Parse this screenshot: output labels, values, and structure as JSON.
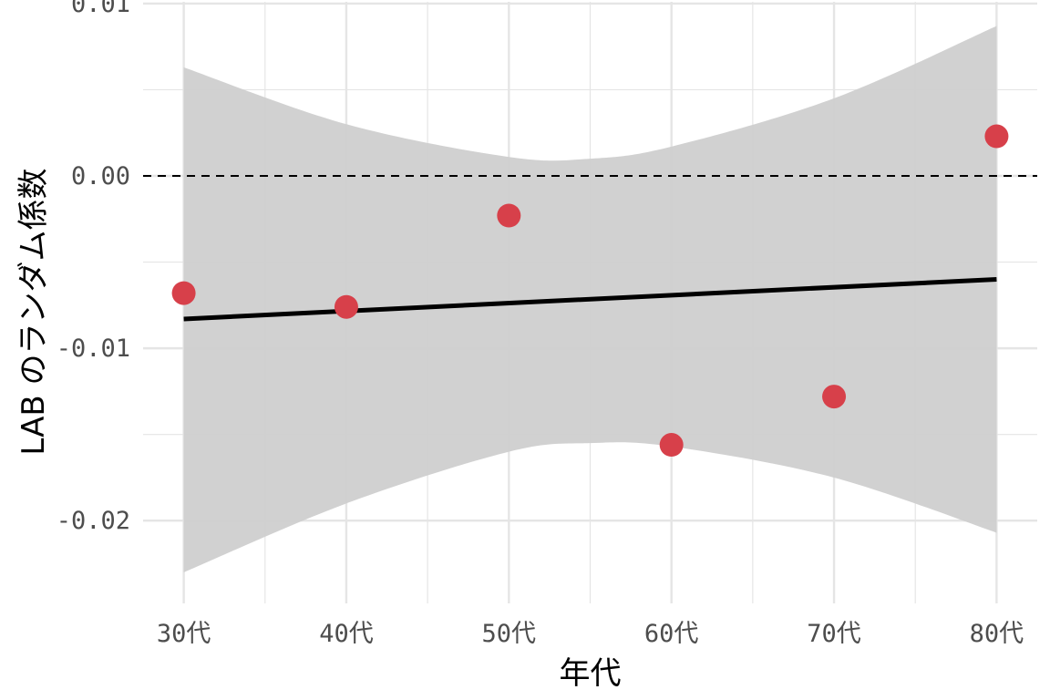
{
  "chart_data": {
    "type": "scatter",
    "xlabel": "年代",
    "ylabel": "LAB のランダム係数",
    "categories": [
      "30代",
      "40代",
      "50代",
      "60代",
      "70代",
      "80代"
    ],
    "x_numeric": [
      30,
      40,
      50,
      60,
      70,
      80
    ],
    "xlim": [
      27.5,
      82.5
    ],
    "ylim": [
      -0.0248,
      0.0101
    ],
    "y_ticks": [
      -0.02,
      -0.01,
      0.0,
      0.01
    ],
    "y_tick_labels": [
      "-0.02",
      "-0.01",
      "0.00",
      "0.01"
    ],
    "series": [
      {
        "values": [
          -0.0068,
          -0.0076,
          -0.0023,
          -0.0156,
          -0.0128,
          0.0023
        ]
      }
    ],
    "fit": {
      "type": "linear",
      "x": [
        30,
        80
      ],
      "y": [
        -0.0083,
        -0.006
      ]
    },
    "confidence_band": {
      "x": [
        30,
        40,
        50,
        55,
        60,
        70,
        80
      ],
      "upper": [
        0.0063,
        0.003,
        0.0011,
        0.001,
        0.0017,
        0.0045,
        0.0087
      ],
      "lower": [
        -0.023,
        -0.019,
        -0.016,
        -0.0155,
        -0.0157,
        -0.0175,
        -0.0207
      ]
    },
    "reference_line": {
      "y": 0.0,
      "style": "dashed"
    },
    "grid": true,
    "colors": {
      "point": "#d7404a",
      "fit_line": "#000000",
      "band": "#cfcfcf",
      "grid": "#e5e5e5",
      "reference": "#000000"
    }
  }
}
